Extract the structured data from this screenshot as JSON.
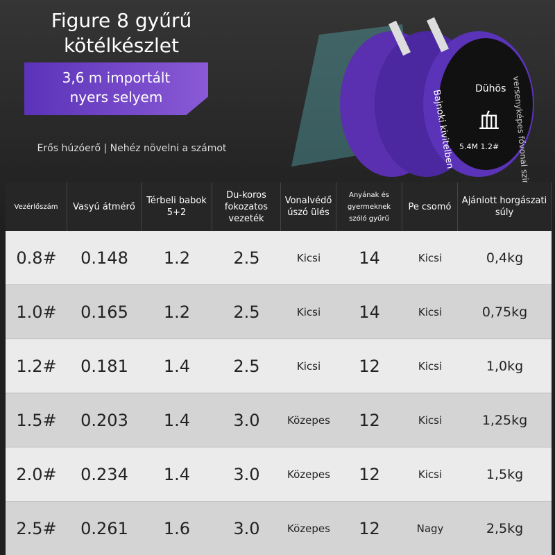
{
  "header": {
    "title": [
      "Figure 8 gyűrű",
      "kötélkészlet"
    ],
    "badge": [
      "3,6 m importált",
      "nyers selyem"
    ],
    "subtitle": "Erős húzóerő | Nehéz növelni a számot"
  },
  "product": {
    "labels": [
      "Dühös",
      "Bajnoki kivitelben",
      "versenyképes fővonal szint",
      "血",
      "5.4M 1.2#"
    ]
  },
  "table": {
    "columns": [
      "Vezérlőszám",
      "Vasyú átmérő",
      "Térbeli babok 5+2",
      "Du-koros fokozatos vezeték",
      "Vonalvédő úszó ülés",
      "Anyának és gyermeknek szóló gyűrű",
      "Pe csomó",
      "Ajánlott horgászati súly"
    ],
    "rows": [
      [
        "0.8#",
        "0.148",
        "1.2",
        "2.5",
        "Kicsi",
        "14",
        "Kicsi",
        "0,4kg"
      ],
      [
        "1.0#",
        "0.165",
        "1.2",
        "2.5",
        "Kicsi",
        "14",
        "Kicsi",
        "0,75kg"
      ],
      [
        "1.2#",
        "0.181",
        "1.4",
        "2.5",
        "Kicsi",
        "12",
        "Kicsi",
        "1,0kg"
      ],
      [
        "1.5#",
        "0.203",
        "1.4",
        "3.0",
        "Közepes",
        "12",
        "Kicsi",
        "1,25kg"
      ],
      [
        "2.0#",
        "0.234",
        "1.4",
        "3.0",
        "Közepes",
        "12",
        "Kicsi",
        "1,5kg"
      ],
      [
        "2.5#",
        "0.261",
        "1.6",
        "3.0",
        "Közepes",
        "12",
        "Nagy",
        "2,5kg"
      ]
    ]
  }
}
